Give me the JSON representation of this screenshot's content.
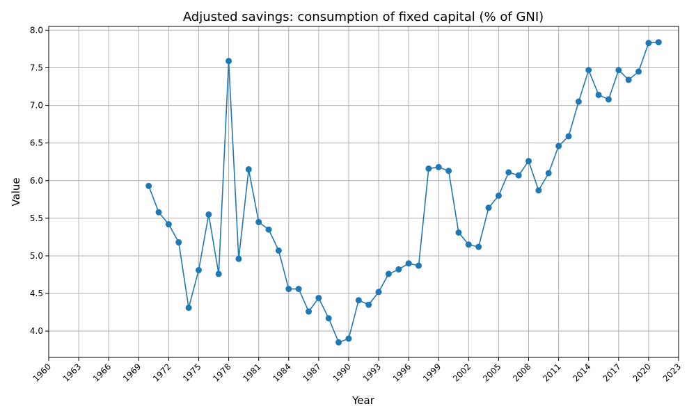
{
  "chart_data": {
    "type": "line",
    "title": "Adjusted savings: consumption of fixed capital (% of GNI)",
    "xlabel": "Year",
    "ylabel": "Value",
    "xlim": [
      1960,
      2023
    ],
    "ylim": [
      3.65,
      8.05
    ],
    "x_ticks": [
      1960,
      1963,
      1966,
      1969,
      1972,
      1975,
      1978,
      1981,
      1984,
      1987,
      1990,
      1993,
      1996,
      1999,
      2002,
      2005,
      2008,
      2011,
      2014,
      2017,
      2020,
      2023
    ],
    "y_ticks": [
      "4.0",
      "4.5",
      "5.0",
      "5.5",
      "6.0",
      "6.5",
      "7.0",
      "7.5",
      "8.0"
    ],
    "grid": true,
    "line_color": "#1f77b4",
    "series": [
      {
        "x": [
          1970,
          1971,
          1972,
          1973,
          1974,
          1975,
          1976,
          1977,
          1978,
          1979,
          1980,
          1981,
          1982,
          1983,
          1984,
          1985,
          1986,
          1987,
          1988,
          1989,
          1990,
          1991,
          1992,
          1993,
          1994,
          1995,
          1996,
          1997,
          1998,
          1999,
          2000,
          2001,
          2002,
          2003,
          2004,
          2005,
          2006,
          2007,
          2008,
          2009,
          2010,
          2011,
          2012,
          2013,
          2014,
          2015,
          2016,
          2017,
          2018,
          2019,
          2020,
          2021
        ],
        "values": [
          5.93,
          5.58,
          5.42,
          5.18,
          4.31,
          4.81,
          5.55,
          4.76,
          7.59,
          4.96,
          6.15,
          5.45,
          5.35,
          5.07,
          4.56,
          4.56,
          4.26,
          4.44,
          4.17,
          3.85,
          3.9,
          4.41,
          4.35,
          4.52,
          4.76,
          4.82,
          4.9,
          4.87,
          6.16,
          6.18,
          6.13,
          5.31,
          5.15,
          5.12,
          5.64,
          5.8,
          6.11,
          6.07,
          6.26,
          5.87,
          6.1,
          6.46,
          6.59,
          7.05,
          7.47,
          7.14,
          7.08,
          7.47,
          7.34,
          7.45,
          7.83,
          7.84
        ]
      }
    ]
  }
}
